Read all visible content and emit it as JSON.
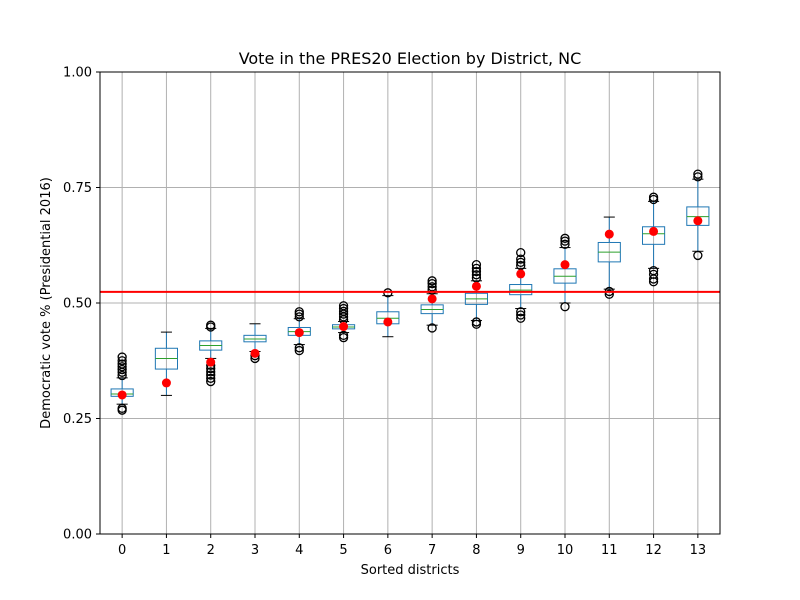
{
  "chart_data": {
    "type": "box",
    "title": "Vote in the PRES20 Election by District, NC",
    "xlabel": "Sorted districts",
    "ylabel": "Democratic vote % (Presidential 2016)",
    "ylim": [
      0,
      1
    ],
    "yticks": [
      0.0,
      0.25,
      0.5,
      0.75,
      1.0
    ],
    "ytick_labels": [
      "0.00",
      "0.25",
      "0.50",
      "0.75",
      "1.00"
    ],
    "categories": [
      "0",
      "1",
      "2",
      "3",
      "4",
      "5",
      "6",
      "7",
      "8",
      "9",
      "10",
      "11",
      "12",
      "13"
    ],
    "grid": true,
    "reference_line": {
      "y": 0.524,
      "color": "#ff0000"
    },
    "box_color": "#1f77b4",
    "median_color": "#2ca02c",
    "marker_color": "#ff0000",
    "boxes": [
      {
        "q1": 0.298,
        "median": 0.303,
        "q3": 0.314,
        "whisker_low": 0.281,
        "whisker_high": 0.338,
        "outliers": [
          0.268,
          0.272,
          0.343,
          0.35,
          0.356,
          0.362,
          0.368,
          0.375,
          0.383
        ],
        "marker": 0.301
      },
      {
        "q1": 0.357,
        "median": 0.38,
        "q3": 0.402,
        "whisker_low": 0.3,
        "whisker_high": 0.437,
        "outliers": [],
        "marker": 0.327
      },
      {
        "q1": 0.398,
        "median": 0.408,
        "q3": 0.418,
        "whisker_low": 0.38,
        "whisker_high": 0.445,
        "outliers": [
          0.33,
          0.337,
          0.344,
          0.351,
          0.358,
          0.365,
          0.448,
          0.452
        ],
        "marker": 0.372
      },
      {
        "q1": 0.416,
        "median": 0.422,
        "q3": 0.43,
        "whisker_low": 0.395,
        "whisker_high": 0.455,
        "outliers": [
          0.38,
          0.386
        ],
        "marker": 0.391
      },
      {
        "q1": 0.43,
        "median": 0.438,
        "q3": 0.447,
        "whisker_low": 0.41,
        "whisker_high": 0.466,
        "outliers": [
          0.397,
          0.403,
          0.47,
          0.476,
          0.481
        ],
        "marker": 0.436
      },
      {
        "q1": 0.444,
        "median": 0.448,
        "q3": 0.453,
        "whisker_low": 0.436,
        "whisker_high": 0.46,
        "outliers": [
          0.425,
          0.43,
          0.464,
          0.47,
          0.476,
          0.482,
          0.488,
          0.494
        ],
        "marker": 0.449
      },
      {
        "q1": 0.455,
        "median": 0.467,
        "q3": 0.481,
        "whisker_low": 0.427,
        "whisker_high": 0.516,
        "outliers": [
          0.522
        ],
        "marker": 0.459
      },
      {
        "q1": 0.477,
        "median": 0.486,
        "q3": 0.496,
        "whisker_low": 0.452,
        "whisker_high": 0.52,
        "outliers": [
          0.446,
          0.528,
          0.535,
          0.542,
          0.548
        ],
        "marker": 0.509
      },
      {
        "q1": 0.497,
        "median": 0.509,
        "q3": 0.521,
        "whisker_low": 0.462,
        "whisker_high": 0.548,
        "outliers": [
          0.454,
          0.459,
          0.554,
          0.561,
          0.568,
          0.575,
          0.583
        ],
        "marker": 0.536
      },
      {
        "q1": 0.518,
        "median": 0.528,
        "q3": 0.54,
        "whisker_low": 0.488,
        "whisker_high": 0.575,
        "outliers": [
          0.467,
          0.474,
          0.481,
          0.581,
          0.588,
          0.595,
          0.609
        ],
        "marker": 0.563
      },
      {
        "q1": 0.543,
        "median": 0.558,
        "q3": 0.574,
        "whisker_low": 0.5,
        "whisker_high": 0.62,
        "outliers": [
          0.492,
          0.627,
          0.634,
          0.64
        ],
        "marker": 0.583
      },
      {
        "q1": 0.589,
        "median": 0.61,
        "q3": 0.631,
        "whisker_low": 0.53,
        "whisker_high": 0.686,
        "outliers": [
          0.519,
          0.525
        ],
        "marker": 0.649
      },
      {
        "q1": 0.627,
        "median": 0.65,
        "q3": 0.665,
        "whisker_low": 0.575,
        "whisker_high": 0.72,
        "outliers": [
          0.546,
          0.552,
          0.562,
          0.57,
          0.724,
          0.729
        ],
        "marker": 0.655
      },
      {
        "q1": 0.668,
        "median": 0.687,
        "q3": 0.708,
        "whisker_low": 0.612,
        "whisker_high": 0.768,
        "outliers": [
          0.603,
          0.773,
          0.779
        ],
        "marker": 0.678
      }
    ]
  }
}
